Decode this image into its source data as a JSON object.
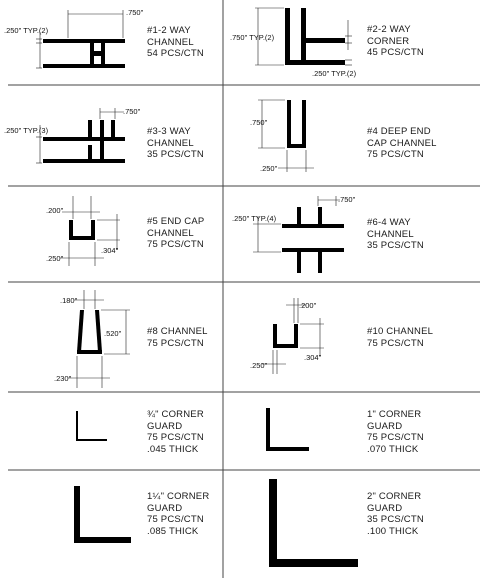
{
  "items": [
    {
      "id": "1",
      "lines": [
        "#1-2 WAY",
        "CHANNEL",
        "54 PCS/CTN"
      ],
      "dims": [
        ".750\"",
        ".250\" TYP.(2)"
      ]
    },
    {
      "id": "2",
      "lines": [
        "#2-2 WAY",
        "CORNER",
        "45 PCS/CTN"
      ],
      "dims": [
        ".750\" TYP.(2)",
        ".250\" TYP.(2)"
      ]
    },
    {
      "id": "3",
      "lines": [
        "#3-3 WAY",
        "CHANNEL",
        "35 PCS/CTN"
      ],
      "dims": [
        ".750\"",
        ".250\" TYP.(3)"
      ]
    },
    {
      "id": "4",
      "lines": [
        "#4 DEEP END",
        "CAP CHANNEL",
        "75 PCS/CTN"
      ],
      "dims": [
        ".750\"",
        ".250\""
      ]
    },
    {
      "id": "5",
      "lines": [
        "#5 END CAP",
        "CHANNEL",
        "75 PCS/CTN"
      ],
      "dims": [
        ".200\"",
        ".250\"",
        ".304\""
      ]
    },
    {
      "id": "6",
      "lines": [
        "#6-4 WAY",
        "CHANNEL",
        "35 PCS/CTN"
      ],
      "dims": [
        ".750\"",
        ".250\" TYP.(4)"
      ]
    },
    {
      "id": "8",
      "lines": [
        "#8 CHANNEL",
        "75 PCS/CTN"
      ],
      "dims": [
        ".180\"",
        ".520\"",
        ".230\""
      ]
    },
    {
      "id": "10",
      "lines": [
        "#10 CHANNEL",
        "75 PCS/CTN"
      ],
      "dims": [
        ".200\"",
        ".250\"",
        ".304\""
      ]
    },
    {
      "id": "g34",
      "lines": [
        "¾\" CORNER",
        "GUARD",
        "75 PCS/CTN",
        ".045 THICK"
      ],
      "dims": []
    },
    {
      "id": "g1",
      "lines": [
        "1\" CORNER",
        "GUARD",
        "75 PCS/CTN",
        ".070 THICK"
      ],
      "dims": []
    },
    {
      "id": "g114",
      "lines": [
        "1¼\" CORNER",
        "GUARD",
        "75 PCS/CTN",
        ".085 THICK"
      ],
      "dims": []
    },
    {
      "id": "g2",
      "lines": [
        "2\" CORNER",
        "GUARD",
        "35 PCS/CTN",
        ".100 THICK"
      ],
      "dims": []
    }
  ]
}
